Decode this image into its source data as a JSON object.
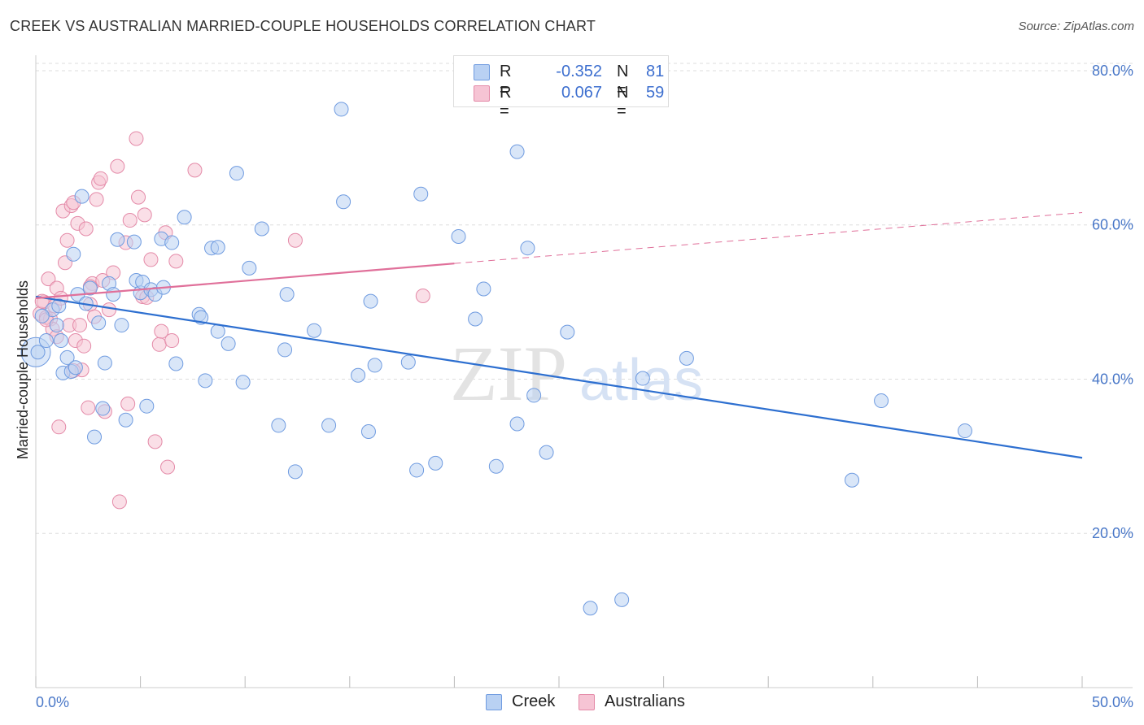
{
  "header": {
    "title": "CREEK VS AUSTRALIAN MARRIED-COUPLE HOUSEHOLDS CORRELATION CHART",
    "source": "Source: ZipAtlas.com"
  },
  "watermark": {
    "part1": "ZIP",
    "part2": "atlas"
  },
  "legend": {
    "rows": [
      {
        "r_label": "R =",
        "r_value": "-0.352",
        "n_label": "N =",
        "n_value": "81"
      },
      {
        "r_label": "R =",
        "r_value": "0.067",
        "n_label": "N =",
        "n_value": "59"
      }
    ]
  },
  "colors": {
    "creek_fill": "#b9d1f3",
    "creek_stroke": "#6f9be0",
    "creek_line": "#2d6fd0",
    "aus_fill": "#f6c4d4",
    "aus_stroke": "#e48aa8",
    "aus_line": "#e0709a",
    "tick_text": "#4a78c8",
    "grid": "#dddddd"
  },
  "chart_data": {
    "type": "scatter",
    "title": "CREEK VS AUSTRALIAN MARRIED-COUPLE HOUSEHOLDS CORRELATION CHART",
    "xlabel": "",
    "ylabel": "Married-couple Households",
    "xlim": [
      0,
      50
    ],
    "ylim": [
      0,
      82
    ],
    "x_tick_labels": [
      "0.0%",
      "50.0%"
    ],
    "y_ticks": [
      20,
      40,
      60,
      80
    ],
    "y_tick_labels": [
      "20.0%",
      "40.0%",
      "60.0%",
      "80.0%"
    ],
    "grid": "horizontal dashed",
    "legend_placement": "top-center",
    "series": [
      {
        "name": "Creek",
        "stats": {
          "R": -0.352,
          "N": 81
        },
        "trend": {
          "x": [
            0,
            50
          ],
          "y": [
            50.7,
            29.8
          ],
          "style": "solid"
        },
        "points": [
          [
            0.1,
            43.5
          ],
          [
            0.5,
            45.0
          ],
          [
            0.8,
            49.0
          ],
          [
            1.0,
            47.0
          ],
          [
            1.1,
            49.5
          ],
          [
            1.2,
            45.0
          ],
          [
            1.3,
            40.8
          ],
          [
            1.5,
            42.8
          ],
          [
            1.7,
            41.0
          ],
          [
            1.8,
            56.2
          ],
          [
            2.0,
            51.0
          ],
          [
            2.2,
            63.7
          ],
          [
            2.4,
            49.8
          ],
          [
            2.6,
            51.8
          ],
          [
            2.8,
            32.5
          ],
          [
            3.0,
            47.3
          ],
          [
            3.2,
            36.2
          ],
          [
            3.3,
            42.1
          ],
          [
            3.5,
            52.4
          ],
          [
            3.7,
            51.0
          ],
          [
            3.9,
            58.1
          ],
          [
            4.1,
            47.0
          ],
          [
            4.3,
            34.7
          ],
          [
            4.7,
            57.8
          ],
          [
            4.8,
            52.8
          ],
          [
            5.0,
            51.2
          ],
          [
            5.1,
            52.6
          ],
          [
            5.3,
            36.5
          ],
          [
            5.5,
            51.6
          ],
          [
            5.7,
            51.0
          ],
          [
            6.0,
            58.2
          ],
          [
            6.1,
            51.9
          ],
          [
            6.5,
            57.7
          ],
          [
            6.7,
            42.0
          ],
          [
            7.1,
            61.0
          ],
          [
            7.8,
            48.4
          ],
          [
            7.9,
            48.0
          ],
          [
            8.1,
            39.8
          ],
          [
            8.4,
            57.0
          ],
          [
            8.7,
            57.1
          ],
          [
            9.2,
            44.6
          ],
          [
            9.6,
            66.7
          ],
          [
            9.9,
            39.6
          ],
          [
            10.2,
            54.4
          ],
          [
            10.8,
            59.5
          ],
          [
            11.6,
            34.0
          ],
          [
            11.9,
            43.8
          ],
          [
            12.4,
            28.0
          ],
          [
            13.3,
            46.3
          ],
          [
            14.0,
            34.0
          ],
          [
            14.6,
            75.0
          ],
          [
            14.7,
            63.0
          ],
          [
            15.4,
            40.5
          ],
          [
            15.9,
            33.2
          ],
          [
            16.0,
            50.1
          ],
          [
            16.2,
            41.8
          ],
          [
            17.8,
            42.2
          ],
          [
            18.2,
            28.2
          ],
          [
            18.4,
            64.0
          ],
          [
            19.1,
            29.1
          ],
          [
            20.2,
            58.5
          ],
          [
            21.0,
            47.8
          ],
          [
            21.4,
            51.7
          ],
          [
            22.0,
            28.7
          ],
          [
            23.0,
            34.2
          ],
          [
            23.0,
            69.5
          ],
          [
            23.5,
            57.0
          ],
          [
            23.8,
            37.9
          ],
          [
            24.4,
            30.5
          ],
          [
            25.4,
            46.1
          ],
          [
            26.5,
            10.3
          ],
          [
            28.0,
            11.4
          ],
          [
            29.0,
            40.1
          ],
          [
            31.1,
            42.7
          ],
          [
            39.0,
            26.9
          ],
          [
            40.4,
            37.2
          ],
          [
            44.4,
            33.3
          ],
          [
            0.3,
            48.2
          ],
          [
            1.9,
            41.5
          ],
          [
            12.0,
            51.0
          ],
          [
            8.7,
            46.2
          ]
        ]
      },
      {
        "name": "Australians",
        "stats": {
          "R": 0.067,
          "N": 59
        },
        "trend": {
          "x": [
            0,
            20
          ],
          "y": [
            50.5,
            55.0
          ],
          "x_dashed": [
            20,
            50
          ],
          "y_dashed": [
            55.0,
            61.6
          ],
          "style": "solid-then-dashed"
        },
        "points": [
          [
            0.2,
            48.5
          ],
          [
            0.4,
            50.0
          ],
          [
            0.5,
            48.0
          ],
          [
            0.6,
            53.0
          ],
          [
            0.7,
            47.8
          ],
          [
            0.8,
            46.5
          ],
          [
            0.9,
            49.5
          ],
          [
            1.0,
            51.8
          ],
          [
            1.0,
            45.5
          ],
          [
            1.1,
            33.8
          ],
          [
            1.2,
            50.5
          ],
          [
            1.3,
            61.8
          ],
          [
            1.4,
            55.1
          ],
          [
            1.5,
            58.0
          ],
          [
            1.6,
            47.0
          ],
          [
            1.7,
            62.5
          ],
          [
            1.8,
            62.9
          ],
          [
            1.9,
            45.0
          ],
          [
            2.0,
            60.2
          ],
          [
            2.1,
            47.0
          ],
          [
            2.2,
            41.2
          ],
          [
            2.3,
            44.3
          ],
          [
            2.4,
            59.5
          ],
          [
            2.5,
            36.3
          ],
          [
            2.6,
            49.7
          ],
          [
            2.7,
            52.4
          ],
          [
            2.8,
            48.1
          ],
          [
            2.9,
            63.3
          ],
          [
            3.0,
            65.5
          ],
          [
            3.1,
            66.0
          ],
          [
            3.2,
            52.8
          ],
          [
            3.3,
            35.8
          ],
          [
            3.5,
            49.0
          ],
          [
            3.7,
            53.8
          ],
          [
            3.9,
            67.6
          ],
          [
            4.0,
            24.1
          ],
          [
            4.3,
            57.7
          ],
          [
            4.4,
            36.8
          ],
          [
            4.5,
            60.6
          ],
          [
            4.8,
            71.2
          ],
          [
            4.9,
            63.6
          ],
          [
            5.1,
            50.7
          ],
          [
            5.2,
            61.3
          ],
          [
            5.3,
            50.6
          ],
          [
            5.5,
            55.5
          ],
          [
            5.7,
            31.9
          ],
          [
            5.9,
            44.5
          ],
          [
            6.0,
            46.2
          ],
          [
            6.2,
            59.0
          ],
          [
            6.3,
            28.6
          ],
          [
            6.5,
            45.0
          ],
          [
            6.7,
            55.3
          ],
          [
            7.6,
            67.1
          ],
          [
            12.4,
            58.0
          ],
          [
            18.5,
            50.8
          ],
          [
            0.3,
            50.1
          ],
          [
            0.5,
            47.7
          ],
          [
            1.8,
            41.1
          ],
          [
            2.6,
            52.0
          ]
        ]
      }
    ]
  },
  "bottom_legend": {
    "items": [
      "Creek",
      "Australians"
    ]
  }
}
